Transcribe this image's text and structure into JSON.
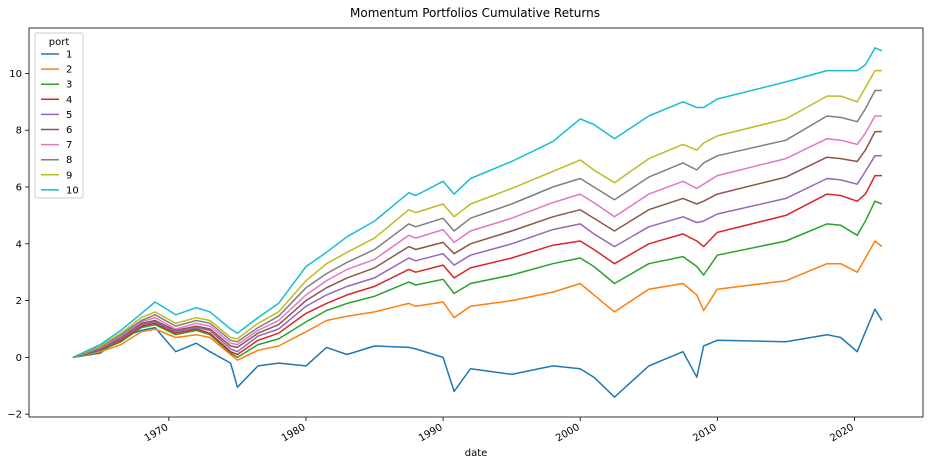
{
  "chart_data": {
    "type": "line",
    "title": "Momentum Portfolios Cumulative Returns",
    "xlabel": "date",
    "ylabel": "",
    "xlim": [
      1959.8,
      2025.0
    ],
    "ylim": [
      -2.1,
      11.6
    ],
    "x_ticks": [
      1970,
      1980,
      1990,
      2000,
      2010,
      2020
    ],
    "x_tick_labels": [
      "1970",
      "1980",
      "1990",
      "2000",
      "2010",
      "2020"
    ],
    "y_ticks": [
      -2,
      0,
      2,
      4,
      6,
      8,
      10
    ],
    "y_tick_labels": [
      "−2",
      "0",
      "2",
      "4",
      "6",
      "8",
      "10"
    ],
    "grid": false,
    "legend": {
      "title": "port",
      "position": "top-left"
    },
    "x": [
      1963,
      1965,
      1966.5,
      1968,
      1969,
      1970.5,
      1972,
      1973,
      1974.5,
      1975,
      1976.5,
      1978,
      1980,
      1981.5,
      1983,
      1985,
      1987.5,
      1988,
      1990,
      1990.8,
      1992,
      1995,
      1998,
      2000,
      2001,
      2002.5,
      2005,
      2007.5,
      2008.5,
      2009,
      2010,
      2015,
      2018,
      2019,
      2020.2,
      2020.8,
      2021.5,
      2022
    ],
    "series": [
      {
        "name": "1",
        "color": "#1f77b4",
        "values": [
          0,
          0.15,
          0.7,
          0.95,
          1.05,
          0.2,
          0.5,
          0.2,
          -0.2,
          -1.05,
          -0.3,
          -0.2,
          -0.3,
          0.35,
          0.1,
          0.4,
          0.35,
          0.3,
          0.0,
          -1.2,
          -0.4,
          -0.6,
          -0.3,
          -0.4,
          -0.7,
          -1.4,
          -0.3,
          0.2,
          -0.7,
          0.4,
          0.6,
          0.55,
          0.8,
          0.7,
          0.2,
          0.9,
          1.7,
          1.3
        ]
      },
      {
        "name": "2",
        "color": "#ff7f0e",
        "values": [
          0,
          0.2,
          0.45,
          0.9,
          1.0,
          0.7,
          0.8,
          0.7,
          0.1,
          -0.1,
          0.25,
          0.4,
          0.9,
          1.3,
          1.45,
          1.6,
          1.9,
          1.8,
          1.95,
          1.4,
          1.8,
          2.0,
          2.3,
          2.6,
          2.2,
          1.6,
          2.4,
          2.6,
          2.2,
          1.65,
          2.4,
          2.7,
          3.3,
          3.3,
          3.0,
          3.5,
          4.1,
          3.9
        ]
      },
      {
        "name": "3",
        "color": "#2ca02c",
        "values": [
          0,
          0.25,
          0.55,
          1.05,
          1.15,
          0.8,
          0.95,
          0.8,
          0.15,
          0.0,
          0.45,
          0.65,
          1.25,
          1.65,
          1.9,
          2.15,
          2.65,
          2.55,
          2.75,
          2.25,
          2.6,
          2.9,
          3.3,
          3.5,
          3.2,
          2.6,
          3.3,
          3.55,
          3.2,
          2.9,
          3.6,
          4.1,
          4.7,
          4.65,
          4.3,
          4.8,
          5.5,
          5.4
        ]
      },
      {
        "name": "4",
        "color": "#d62728",
        "values": [
          0,
          0.28,
          0.6,
          1.1,
          1.2,
          0.85,
          1.0,
          0.85,
          0.2,
          0.1,
          0.6,
          0.85,
          1.55,
          1.9,
          2.2,
          2.5,
          3.1,
          3.0,
          3.25,
          2.8,
          3.15,
          3.5,
          3.95,
          4.1,
          3.8,
          3.3,
          4.0,
          4.35,
          4.1,
          3.9,
          4.4,
          5.0,
          5.75,
          5.7,
          5.5,
          5.75,
          6.4,
          6.4
        ]
      },
      {
        "name": "5",
        "color": "#9467bd",
        "values": [
          0,
          0.3,
          0.65,
          1.15,
          1.25,
          0.9,
          1.05,
          0.95,
          0.3,
          0.2,
          0.75,
          1.0,
          1.8,
          2.2,
          2.5,
          2.8,
          3.5,
          3.4,
          3.65,
          3.25,
          3.6,
          4.0,
          4.5,
          4.7,
          4.35,
          3.9,
          4.6,
          4.95,
          4.75,
          4.8,
          5.05,
          5.6,
          6.3,
          6.25,
          6.1,
          6.55,
          7.1,
          7.1
        ]
      },
      {
        "name": "6",
        "color": "#8c564b",
        "values": [
          0,
          0.32,
          0.7,
          1.2,
          1.3,
          0.95,
          1.1,
          1.0,
          0.4,
          0.35,
          0.85,
          1.15,
          2.0,
          2.45,
          2.8,
          3.15,
          3.9,
          3.8,
          4.05,
          3.65,
          4.0,
          4.45,
          4.95,
          5.2,
          4.9,
          4.45,
          5.2,
          5.6,
          5.4,
          5.5,
          5.75,
          6.35,
          7.05,
          7.0,
          6.9,
          7.3,
          7.95,
          7.95
        ]
      },
      {
        "name": "7",
        "color": "#e377c2",
        "values": [
          0,
          0.34,
          0.75,
          1.25,
          1.4,
          1.0,
          1.2,
          1.1,
          0.5,
          0.45,
          0.95,
          1.3,
          2.2,
          2.7,
          3.1,
          3.45,
          4.3,
          4.2,
          4.5,
          4.05,
          4.45,
          4.9,
          5.45,
          5.75,
          5.45,
          4.95,
          5.75,
          6.2,
          5.95,
          6.1,
          6.4,
          7.0,
          7.7,
          7.65,
          7.5,
          7.9,
          8.5,
          8.5
        ]
      },
      {
        "name": "8",
        "color": "#7f7f7f",
        "values": [
          0,
          0.37,
          0.8,
          1.3,
          1.5,
          1.1,
          1.3,
          1.2,
          0.6,
          0.55,
          1.05,
          1.45,
          2.45,
          2.95,
          3.35,
          3.8,
          4.7,
          4.6,
          4.9,
          4.45,
          4.9,
          5.4,
          6.0,
          6.3,
          6.0,
          5.55,
          6.35,
          6.85,
          6.6,
          6.85,
          7.1,
          7.65,
          8.5,
          8.45,
          8.3,
          8.75,
          9.4,
          9.4
        ]
      },
      {
        "name": "9",
        "color": "#bcbd22",
        "values": [
          0,
          0.4,
          0.85,
          1.4,
          1.6,
          1.2,
          1.4,
          1.3,
          0.7,
          0.65,
          1.2,
          1.6,
          2.7,
          3.3,
          3.7,
          4.2,
          5.2,
          5.1,
          5.4,
          4.95,
          5.4,
          5.95,
          6.55,
          6.95,
          6.6,
          6.15,
          7.0,
          7.5,
          7.3,
          7.55,
          7.8,
          8.4,
          9.2,
          9.2,
          9.0,
          9.5,
          10.1,
          10.1
        ]
      },
      {
        "name": "10",
        "color": "#17becf",
        "values": [
          0,
          0.45,
          0.95,
          1.55,
          1.95,
          1.5,
          1.75,
          1.6,
          1.0,
          0.85,
          1.4,
          1.9,
          3.2,
          3.7,
          4.25,
          4.8,
          5.8,
          5.7,
          6.2,
          5.75,
          6.3,
          6.9,
          7.6,
          8.4,
          8.2,
          7.7,
          8.5,
          9.0,
          8.8,
          8.8,
          9.1,
          9.7,
          10.1,
          10.1,
          10.1,
          10.3,
          10.9,
          10.8
        ]
      }
    ]
  }
}
